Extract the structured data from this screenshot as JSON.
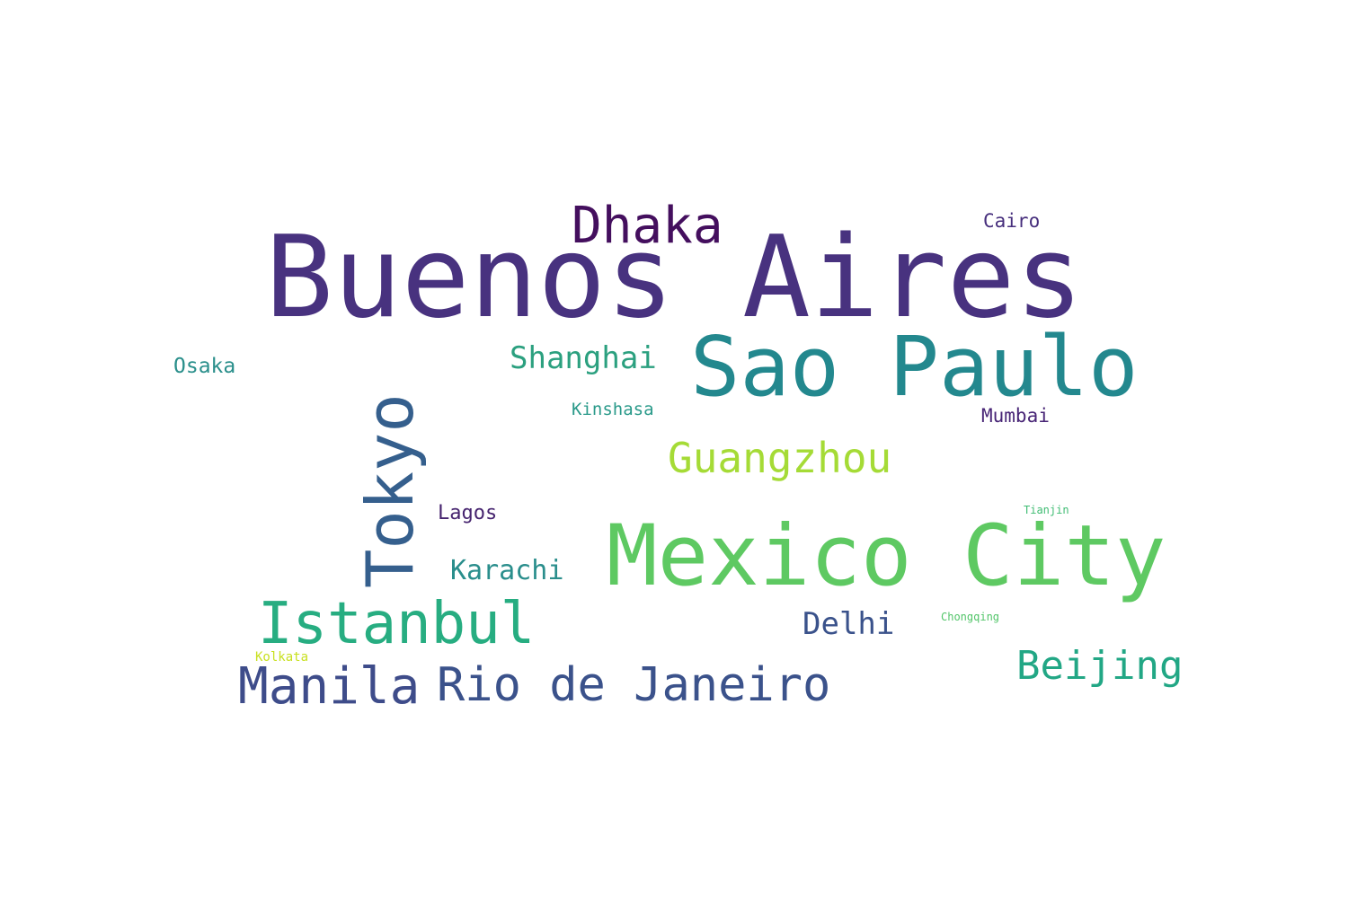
{
  "words": [
    {
      "id": "w-buenos-aires",
      "text": "Buenos Aires",
      "color": "#48327f"
    },
    {
      "id": "w-sao-paulo",
      "text": "Sao Paulo",
      "color": "#23888e"
    },
    {
      "id": "w-mexico-city",
      "text": "Mexico City",
      "color": "#5ec962"
    },
    {
      "id": "w-tokyo",
      "text": "Tokyo",
      "color": "#355f8d"
    },
    {
      "id": "w-istanbul",
      "text": "Istanbul",
      "color": "#27ad81"
    },
    {
      "id": "w-manila",
      "text": "Manila",
      "color": "#3e4c8a"
    },
    {
      "id": "w-rio",
      "text": "Rio de Janeiro",
      "color": "#3b528b"
    },
    {
      "id": "w-dhaka",
      "text": "Dhaka",
      "color": "#440f5e"
    },
    {
      "id": "w-guangzhou",
      "text": "Guangzhou",
      "color": "#a5db36"
    },
    {
      "id": "w-beijing",
      "text": "Beijing",
      "color": "#22a785"
    },
    {
      "id": "w-shanghai",
      "text": "Shanghai",
      "color": "#2ba07f"
    },
    {
      "id": "w-karachi",
      "text": "Karachi",
      "color": "#2a8e8c"
    },
    {
      "id": "w-delhi",
      "text": "Delhi",
      "color": "#3a528b"
    },
    {
      "id": "w-osaka",
      "text": "Osaka",
      "color": "#2a8f8b"
    },
    {
      "id": "w-cairo",
      "text": "Cairo",
      "color": "#472f7d"
    },
    {
      "id": "w-mumbai",
      "text": "Mumbai",
      "color": "#482576"
    },
    {
      "id": "w-lagos",
      "text": "Lagos",
      "color": "#46246f"
    },
    {
      "id": "w-kinshasa",
      "text": "Kinshasa",
      "color": "#2a9a8a"
    },
    {
      "id": "w-tianjin",
      "text": "Tianjin",
      "color": "#3fbc73"
    },
    {
      "id": "w-chongqing",
      "text": "Chongqing",
      "color": "#52c569"
    },
    {
      "id": "w-kolkata",
      "text": "Kolkata",
      "color": "#c8e020"
    }
  ]
}
